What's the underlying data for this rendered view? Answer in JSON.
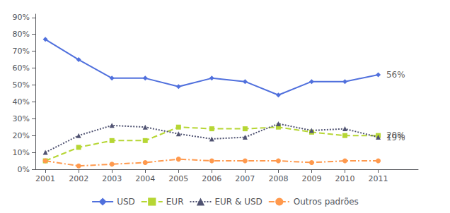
{
  "chart_data": {
    "type": "line",
    "x": [
      2001,
      2002,
      2003,
      2004,
      2005,
      2006,
      2007,
      2008,
      2009,
      2010,
      2011
    ],
    "series": [
      {
        "name": "USD",
        "values": [
          0.77,
          0.65,
          0.54,
          0.54,
          0.49,
          0.54,
          0.52,
          0.44,
          0.52,
          0.52,
          0.56
        ],
        "marker": "diamond",
        "line_style": "solid"
      },
      {
        "name": "EUR",
        "values": [
          0.05,
          0.13,
          0.17,
          0.17,
          0.25,
          0.24,
          0.24,
          0.25,
          0.22,
          0.2,
          0.2
        ],
        "marker": "square",
        "line_style": "dashed"
      },
      {
        "name": "EUR & USD",
        "values": [
          0.1,
          0.2,
          0.26,
          0.25,
          0.21,
          0.18,
          0.19,
          0.27,
          0.23,
          0.24,
          0.19
        ],
        "marker": "triangle",
        "line_style": "dotted"
      },
      {
        "name": "Outros padrões",
        "values": [
          0.05,
          0.02,
          0.03,
          0.04,
          0.06,
          0.05,
          0.05,
          0.05,
          0.04,
          0.05,
          0.05
        ],
        "marker": "circle",
        "line_style": "dashdot"
      }
    ],
    "annotations": [
      {
        "text": "56%",
        "x": 2011.2,
        "y": 0.56
      },
      {
        "text": "20%",
        "x": 2011.2,
        "y": 0.2
      },
      {
        "text": "19%",
        "x": 2011.2,
        "y": 0.19
      }
    ],
    "xlim": [
      2000.7,
      2012.2
    ],
    "xticks": [
      2001,
      2002,
      2003,
      2004,
      2005,
      2006,
      2007,
      2008,
      2009,
      2010,
      2011
    ],
    "ylim": [
      0,
      0.92
    ],
    "yticks": [
      {
        "value": 0.0,
        "label": "0%"
      },
      {
        "value": 0.1,
        "label": "10%"
      },
      {
        "value": 0.2,
        "label": "20%"
      },
      {
        "value": 0.3,
        "label": "30%"
      },
      {
        "value": 0.4,
        "label": "40%"
      },
      {
        "value": 0.5,
        "label": "50%"
      },
      {
        "value": 0.6,
        "label": "60%"
      },
      {
        "value": 0.7,
        "label": "70%"
      },
      {
        "value": 0.8,
        "label": "80%"
      },
      {
        "value": 0.9,
        "label": "90%"
      }
    ],
    "grid": false,
    "legend": "bottom"
  }
}
